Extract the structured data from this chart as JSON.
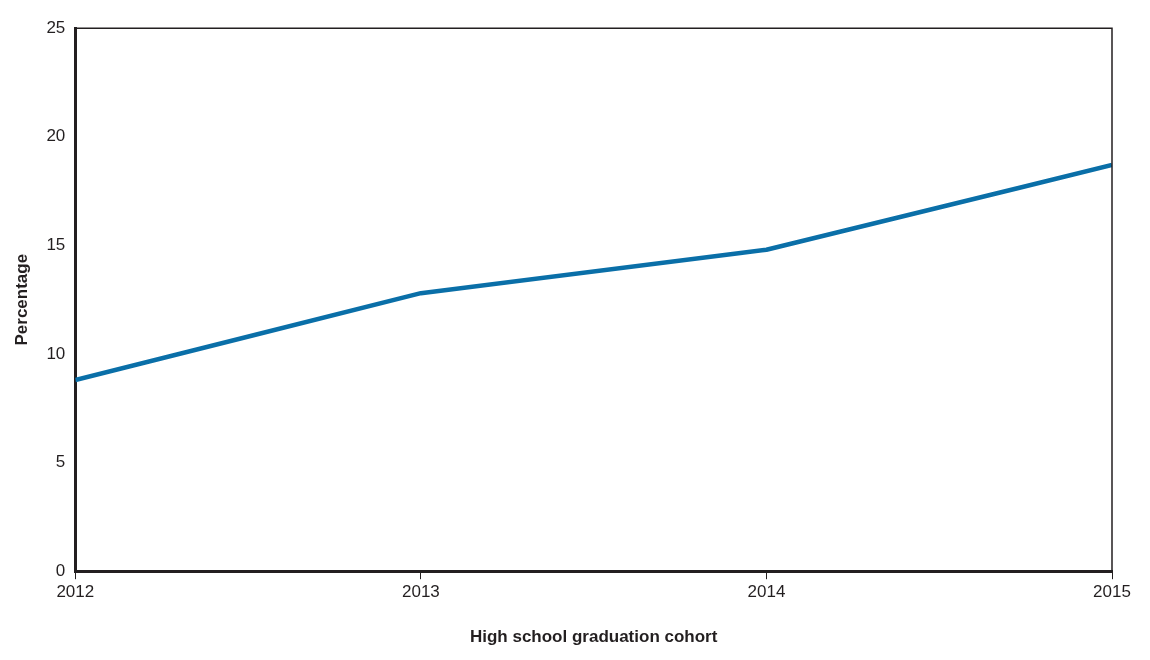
{
  "chart_data": {
    "type": "line",
    "xlabel": "High school graduation cohort",
    "ylabel": "Percentage",
    "x": [
      2012,
      2013,
      2014,
      2015
    ],
    "series": [
      {
        "color": "#0a6fa8",
        "values": [
          8.8,
          12.8,
          14.8,
          18.7
        ]
      }
    ],
    "xlim": [
      2012,
      2015
    ],
    "xticks": [
      2012,
      2013,
      2014,
      2015
    ],
    "ylim": [
      0,
      25
    ],
    "yticks": [
      0,
      5,
      10,
      15,
      20,
      25
    ],
    "grid": false,
    "legend": false,
    "marker": "none",
    "line_style": "solid"
  }
}
